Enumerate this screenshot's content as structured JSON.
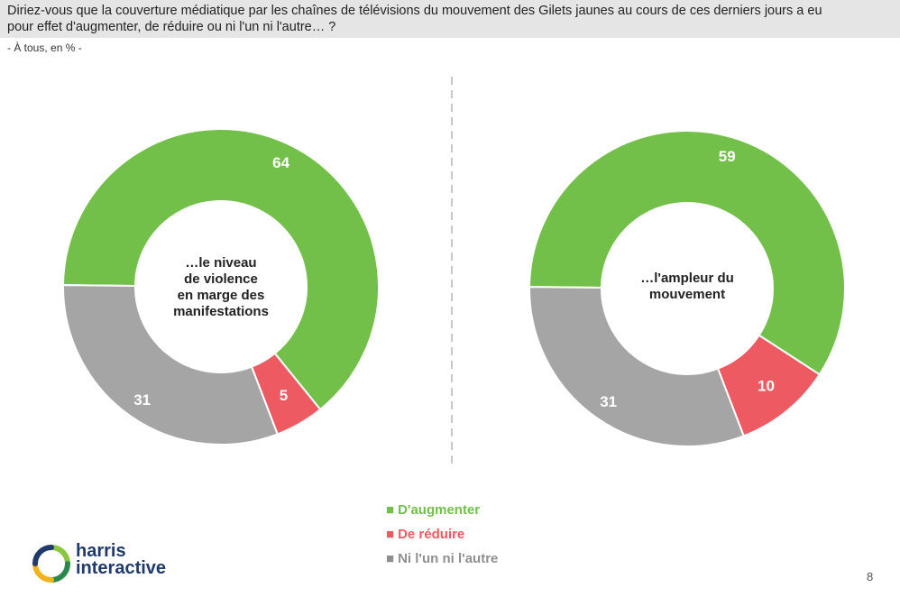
{
  "question": "Diriez-vous que la couverture médiatique par les chaînes de télévisions du mouvement des Gilets jaunes au cours de ces derniers jours a eu pour effet d'augmenter, de réduire ou ni l'un ni l'autre… ?",
  "question_line1": "Diriez-vous que la couverture médiatique par les chaînes de télévisions du mouvement des Gilets jaunes au cours de ces derniers jours a eu",
  "question_line2": "pour effet d'augmenter, de réduire ou ni l'un ni l'autre… ?",
  "subtitle": "- À tous, en % -",
  "colors": {
    "augmenter": "#72c04a",
    "reduire": "#ee5a62",
    "ni": "#a5a5a5"
  },
  "chart_data": [
    {
      "type": "pie",
      "center_label_lines": [
        "…le niveau",
        "de violence",
        "en marge des",
        "manifestations"
      ],
      "categories": [
        "D'augmenter",
        "De réduire",
        "Ni l'un ni l'autre"
      ],
      "values": [
        64,
        5,
        31
      ],
      "value_labels": [
        "64",
        "5",
        "31"
      ]
    },
    {
      "type": "pie",
      "center_label_lines": [
        "…l'ampleur du",
        "mouvement"
      ],
      "categories": [
        "D'augmenter",
        "De réduire",
        "Ni l'un ni l'autre"
      ],
      "values": [
        59,
        10,
        31
      ],
      "value_labels": [
        "59",
        "10",
        "31"
      ]
    }
  ],
  "legend": [
    {
      "label": "D'augmenter",
      "color": "#72c04a"
    },
    {
      "label": "De réduire",
      "color": "#ee5a62"
    },
    {
      "label": "Ni l'un ni l'autre",
      "color": "#a5a5a5"
    }
  ],
  "logo": {
    "line1": "harris",
    "line2": "interactive"
  },
  "page_number": "8"
}
